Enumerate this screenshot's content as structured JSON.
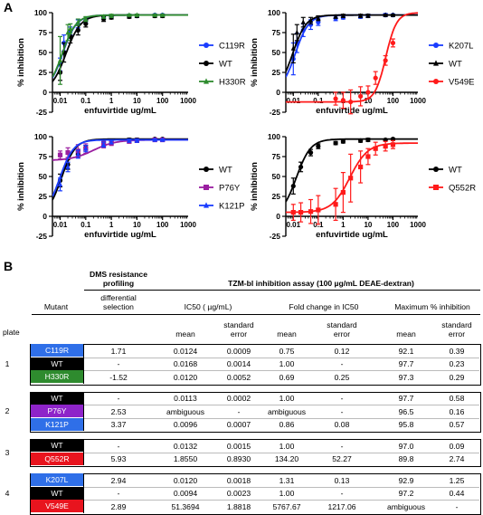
{
  "panel_labels": {
    "a": "A",
    "b": "B"
  },
  "chart_data": [
    {
      "type": "line",
      "xlabel": "enfuvirtide ug/mL",
      "ylabel": "% inhibition",
      "xscale": "log",
      "xlim": [
        0.005,
        1000
      ],
      "ylim": [
        -25,
        100
      ],
      "x_ticks": [
        "0.01",
        "0.1",
        "1",
        "10",
        "100",
        "1000"
      ],
      "y_ticks": [
        "100",
        "75",
        "50",
        "25",
        "0",
        "-25"
      ],
      "legend": "right",
      "series": [
        {
          "name": "C119R",
          "color": "#1a3cff",
          "marker": "circle",
          "x": [
            0.01,
            0.014,
            0.025,
            0.05,
            0.1,
            0.5,
            1,
            5,
            10,
            50,
            100
          ],
          "y": [
            35,
            62,
            77,
            86,
            90,
            94,
            95,
            96,
            96,
            97,
            97
          ],
          "err": [
            8,
            10,
            5,
            5,
            3,
            2,
            2,
            2,
            2,
            1,
            1
          ],
          "fit": {
            "top": 97,
            "bottom": 0,
            "ic50": 0.0124,
            "hill": 1.6
          }
        },
        {
          "name": "WT",
          "color": "#000000",
          "marker": "circle",
          "x": [
            0.01,
            0.014,
            0.025,
            0.05,
            0.1,
            0.5,
            1,
            5,
            10,
            50,
            100
          ],
          "y": [
            25,
            50,
            70,
            78,
            86,
            92,
            94,
            95,
            96,
            96,
            96
          ],
          "err": [
            10,
            12,
            8,
            6,
            4,
            3,
            2,
            2,
            2,
            2,
            2
          ],
          "fit": {
            "top": 97,
            "bottom": 0,
            "ic50": 0.0168,
            "hill": 1.5
          }
        },
        {
          "name": "H330R",
          "color": "#2e8b2e",
          "marker": "triangle",
          "x": [
            0.01,
            0.02,
            0.025,
            0.05,
            0.1,
            0.5,
            1,
            5,
            10,
            50,
            100
          ],
          "y": [
            40,
            75,
            80,
            88,
            92,
            95,
            96,
            97,
            97,
            97,
            97
          ],
          "err": [
            30,
            10,
            6,
            4,
            3,
            2,
            2,
            1,
            1,
            1,
            1
          ],
          "fit": {
            "top": 97,
            "bottom": 0,
            "ic50": 0.012,
            "hill": 1.6
          }
        }
      ]
    },
    {
      "type": "line",
      "xlabel": "enfuvirtide ug/mL",
      "ylabel": "% inhibition",
      "xscale": "log",
      "xlim": [
        0.005,
        1000
      ],
      "ylim": [
        -25,
        100
      ],
      "x_ticks": [
        "0.01",
        "0.1",
        "1",
        "10",
        "100",
        "1000"
      ],
      "y_ticks": [
        "100",
        "75",
        "50",
        "25",
        "0",
        "-25"
      ],
      "legend": "right",
      "series": [
        {
          "name": "K207L",
          "color": "#1a3cff",
          "marker": "circle",
          "x": [
            0.01,
            0.014,
            0.025,
            0.05,
            0.1,
            0.5,
            1,
            5,
            10,
            50,
            100
          ],
          "y": [
            42,
            62,
            78,
            85,
            88,
            93,
            94,
            95,
            96,
            97,
            97
          ],
          "err": [
            20,
            12,
            8,
            6,
            4,
            3,
            2,
            2,
            2,
            2,
            1
          ],
          "fit": {
            "top": 97,
            "bottom": 0,
            "ic50": 0.012,
            "hill": 1.6
          }
        },
        {
          "name": "WT",
          "color": "#000000",
          "marker": "triangle",
          "x": [
            0.01,
            0.014,
            0.025,
            0.05,
            0.1,
            0.5,
            1,
            5,
            10,
            50,
            100
          ],
          "y": [
            55,
            75,
            88,
            90,
            93,
            95,
            96,
            96,
            96,
            97,
            97
          ],
          "err": [
            18,
            10,
            6,
            4,
            3,
            2,
            2,
            2,
            2,
            1,
            1
          ],
          "fit": {
            "top": 97,
            "bottom": 0,
            "ic50": 0.0094,
            "hill": 1.6
          }
        },
        {
          "name": "V549E",
          "color": "#ff1a1a",
          "marker": "circle",
          "x": [
            0.5,
            1,
            2,
            5,
            10,
            20,
            50,
            100
          ],
          "y": [
            -8,
            -10,
            -12,
            -5,
            0,
            18,
            40,
            62
          ],
          "err": [
            8,
            10,
            15,
            12,
            8,
            8,
            6,
            5
          ],
          "fit": {
            "top": 100,
            "bottom": -12,
            "ic50": 51.37,
            "hill": 2.0
          }
        }
      ]
    },
    {
      "type": "line",
      "xlabel": "enfuvirtide ug/mL",
      "ylabel": "% inhibition",
      "xscale": "log",
      "xlim": [
        0.005,
        1000
      ],
      "ylim": [
        -25,
        100
      ],
      "x_ticks": [
        "0.01",
        "0.1",
        "1",
        "10",
        "100",
        "1000"
      ],
      "y_ticks": [
        "100",
        "75",
        "50",
        "25",
        "0",
        "-25"
      ],
      "legend": "right",
      "series": [
        {
          "name": "WT",
          "color": "#000000",
          "marker": "circle",
          "x": [
            0.01,
            0.02,
            0.05,
            0.1,
            0.5,
            1,
            5,
            10,
            50,
            100
          ],
          "y": [
            45,
            65,
            78,
            86,
            92,
            94,
            96,
            96,
            97,
            97
          ],
          "err": [
            8,
            6,
            4,
            3,
            2,
            2,
            2,
            2,
            1,
            1
          ],
          "fit": {
            "top": 97,
            "bottom": 0,
            "ic50": 0.0113,
            "hill": 1.6
          }
        },
        {
          "name": "P76Y",
          "color": "#9a1ea0",
          "marker": "square",
          "x": [
            0.01,
            0.02,
            0.05,
            0.1,
            0.5,
            1,
            5,
            10,
            50,
            100
          ],
          "y": [
            77,
            80,
            82,
            85,
            90,
            92,
            94,
            95,
            96,
            96
          ],
          "err": [
            5,
            6,
            8,
            6,
            4,
            3,
            2,
            2,
            2,
            2
          ],
          "fit": {
            "top": 96,
            "bottom": 70,
            "ic50": 0.2,
            "hill": 1.0
          }
        },
        {
          "name": "K121P",
          "color": "#1a3cff",
          "marker": "triangle",
          "x": [
            0.01,
            0.02,
            0.05,
            0.1,
            0.5,
            1,
            5,
            10,
            50,
            100
          ],
          "y": [
            40,
            62,
            78,
            85,
            90,
            93,
            95,
            95,
            96,
            96
          ],
          "err": [
            8,
            6,
            5,
            4,
            3,
            2,
            2,
            2,
            1,
            1
          ],
          "fit": {
            "top": 96,
            "bottom": 0,
            "ic50": 0.0096,
            "hill": 1.6
          }
        }
      ]
    },
    {
      "type": "line",
      "xlabel": "enfuvirtide ug/mL",
      "ylabel": "% inhibition",
      "xscale": "log",
      "xlim": [
        0.005,
        1000
      ],
      "ylim": [
        -25,
        100
      ],
      "x_ticks": [
        "0.01",
        "0.1",
        "1",
        "10",
        "100",
        "1000"
      ],
      "y_ticks": [
        "100",
        "75",
        "50",
        "25",
        "0",
        "-25"
      ],
      "legend": "right",
      "series": [
        {
          "name": "WT",
          "color": "#000000",
          "marker": "circle",
          "x": [
            0.01,
            0.02,
            0.05,
            0.1,
            0.5,
            1,
            5,
            10,
            50,
            100
          ],
          "y": [
            38,
            62,
            80,
            88,
            92,
            94,
            95,
            96,
            96,
            97
          ],
          "err": [
            10,
            6,
            4,
            3,
            2,
            2,
            2,
            2,
            1,
            1
          ],
          "fit": {
            "top": 97,
            "bottom": 0,
            "ic50": 0.0132,
            "hill": 1.5
          }
        },
        {
          "name": "Q552R",
          "color": "#ff1a1a",
          "marker": "square",
          "x": [
            0.01,
            0.02,
            0.05,
            0.1,
            0.5,
            1,
            2,
            5,
            10,
            20,
            50,
            100
          ],
          "y": [
            5,
            5,
            6,
            8,
            15,
            30,
            48,
            62,
            75,
            85,
            88,
            90
          ],
          "err": [
            10,
            12,
            15,
            18,
            20,
            25,
            30,
            20,
            10,
            8,
            6,
            5
          ],
          "fit": {
            "top": 92,
            "bottom": 5,
            "ic50": 1.855,
            "hill": 1.2
          }
        }
      ]
    }
  ],
  "table": {
    "hdr_dms_1": "DMS resistance",
    "hdr_dms_2": "profiling",
    "hdr_tzm": "TZM-bl inhibition assay (100 µg/mL DEAE-dextran)",
    "hdr_mutant": "Mutant",
    "hdr_diff_1": "differential",
    "hdr_diff_2": "selection",
    "hdr_ic50": "IC50 ( µg/mL)",
    "hdr_fold": "Fold change in IC50",
    "hdr_max": "Maximum % inhibition",
    "hdr_plate": "plate",
    "hdr_mean": "mean",
    "hdr_se_1": "standard",
    "hdr_se_2": "error",
    "groups": [
      {
        "plate": "1",
        "rows": [
          {
            "mutant": "C119R",
            "color": "#2f6fe8",
            "diff": "1.71",
            "ic_mean": "0.0124",
            "ic_se": "0.0009",
            "fc_mean": "0.75",
            "fc_se": "0.12",
            "max_mean": "92.1",
            "max_se": "0.39"
          },
          {
            "mutant": "WT",
            "color": "#000000",
            "diff": "-",
            "ic_mean": "0.0168",
            "ic_se": "0.0014",
            "fc_mean": "1.00",
            "fc_se": "-",
            "max_mean": "97.7",
            "max_se": "0.23"
          },
          {
            "mutant": "H330R",
            "color": "#2e8b2e",
            "diff": "-1.52",
            "ic_mean": "0.0120",
            "ic_se": "0.0052",
            "fc_mean": "0.69",
            "fc_se": "0.25",
            "max_mean": "97.3",
            "max_se": "0.29"
          }
        ]
      },
      {
        "plate": "2",
        "rows": [
          {
            "mutant": "WT",
            "color": "#000000",
            "diff": "-",
            "ic_mean": "0.0113",
            "ic_se": "0.0002",
            "fc_mean": "1.00",
            "fc_se": "-",
            "max_mean": "97.7",
            "max_se": "0.58"
          },
          {
            "mutant": "P76Y",
            "color": "#8e24c9",
            "diff": "2.53",
            "ic_mean": "ambiguous",
            "ic_se": "-",
            "fc_mean": "ambiguous",
            "fc_se": "-",
            "max_mean": "96.5",
            "max_se": "0.16"
          },
          {
            "mutant": "K121P",
            "color": "#2f6fe8",
            "diff": "3.37",
            "ic_mean": "0.0096",
            "ic_se": "0.0007",
            "fc_mean": "0.86",
            "fc_se": "0.08",
            "max_mean": "95.8",
            "max_se": "0.57"
          }
        ]
      },
      {
        "plate": "3",
        "rows": [
          {
            "mutant": "WT",
            "color": "#000000",
            "diff": "-",
            "ic_mean": "0.0132",
            "ic_se": "0.0015",
            "fc_mean": "1.00",
            "fc_se": "-",
            "max_mean": "97.0",
            "max_se": "0.09"
          },
          {
            "mutant": "Q552R",
            "color": "#e8141e",
            "diff": "5.93",
            "ic_mean": "1.8550",
            "ic_se": "0.8930",
            "fc_mean": "134.20",
            "fc_se": "52.27",
            "max_mean": "89.8",
            "max_se": "2.74"
          }
        ]
      },
      {
        "plate": "4",
        "rows": [
          {
            "mutant": "K207L",
            "color": "#2f6fe8",
            "diff": "2.94",
            "ic_mean": "0.0120",
            "ic_se": "0.0018",
            "fc_mean": "1.31",
            "fc_se": "0.13",
            "max_mean": "92.9",
            "max_se": "1.25"
          },
          {
            "mutant": "WT",
            "color": "#000000",
            "diff": "-",
            "ic_mean": "0.0094",
            "ic_se": "0.0023",
            "fc_mean": "1.00",
            "fc_se": "-",
            "max_mean": "97.2",
            "max_se": "0.44"
          },
          {
            "mutant": "V549E",
            "color": "#e8141e",
            "diff": "2.89",
            "ic_mean": "51.3694",
            "ic_se": "1.8818",
            "fc_mean": "5767.67",
            "fc_se": "1217.06",
            "max_mean": "ambiguous",
            "max_se": "-"
          }
        ]
      }
    ]
  }
}
